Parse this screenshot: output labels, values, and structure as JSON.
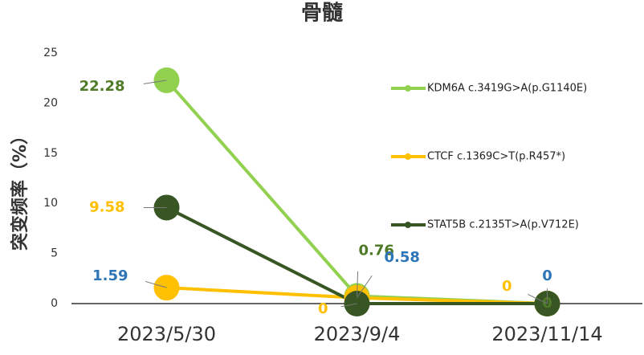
{
  "chart_data": {
    "type": "line",
    "title": "骨髓",
    "y_label": "突变频率（%）",
    "categories": [
      "2023/5/30",
      "2023/9/4",
      "2023/11/14"
    ],
    "series": [
      {
        "name": "KDM6A c.3419G>A(p.G1140E)",
        "color": "#92d050",
        "label_color": "#4f7a28",
        "values": [
          22.28,
          0.76,
          0
        ]
      },
      {
        "name": "CTCF c.1369C>T(p.R457*)",
        "color": "#ffc000",
        "label_color": "#2e75b6",
        "values": [
          1.59,
          0.58,
          0
        ]
      },
      {
        "name": "STAT5B c.2135T>A(p.V712E)",
        "color": "#375623",
        "label_color": "#ffc000",
        "values": [
          9.58,
          0,
          0
        ]
      }
    ],
    "ylim": [
      0,
      25
    ],
    "yticks": [
      0,
      5,
      10,
      15,
      20,
      25
    ],
    "grid": false,
    "legend": "right"
  }
}
